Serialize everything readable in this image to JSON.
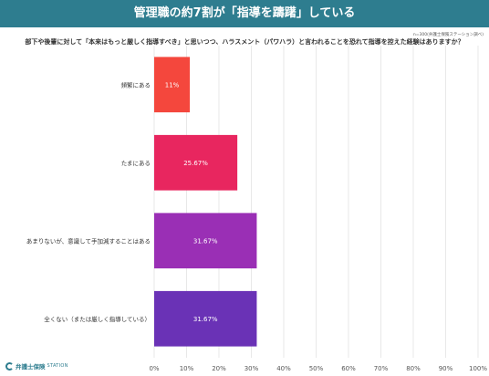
{
  "header": {
    "title": "管理職の約7割が「指導を躊躇」している",
    "note": "n=300(弁護士保険ステーション調べ)",
    "question": "部下や後輩に対して「本来はもっと厳しく指導すべき」と思いつつ、ハラスメント（パワハラ）と言われることを恐れて指導を控えた経験はありますか？"
  },
  "logo": {
    "name": "弁護士保険",
    "suffix": "STATION"
  },
  "chart_data": {
    "type": "bar",
    "orientation": "horizontal",
    "categories": [
      "頻繁にある",
      "たまにある",
      "あまりないが、意識して手加減することはある",
      "全くない（または厳しく指導している）"
    ],
    "values": [
      11,
      25.67,
      31.67,
      31.67
    ],
    "value_labels": [
      "11%",
      "25.67%",
      "31.67%",
      "31.67%"
    ],
    "colors": [
      "#f4473d",
      "#e8265f",
      "#9a2fb5",
      "#6a32b6"
    ],
    "xlim": [
      0,
      100
    ],
    "xticks": [
      0,
      10,
      20,
      30,
      40,
      50,
      60,
      70,
      80,
      90,
      100
    ],
    "xtick_labels": [
      "0%",
      "10%",
      "20%",
      "30%",
      "40%",
      "50%",
      "60%",
      "70%",
      "80%",
      "90%",
      "100%"
    ],
    "grid": true
  }
}
